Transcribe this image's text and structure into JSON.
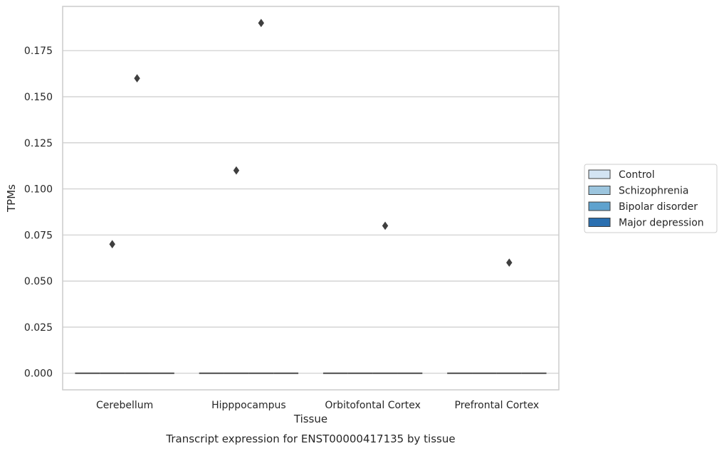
{
  "chart_data": {
    "type": "box",
    "caption": "Transcript expression for ENST00000417135 by tissue",
    "xlabel": "Tissue",
    "ylabel": "TPMs",
    "ylim": [
      -0.009,
      0.199
    ],
    "yticks": [
      0.0,
      0.025,
      0.05,
      0.075,
      0.1,
      0.125,
      0.15,
      0.175
    ],
    "ytick_labels": [
      "0.000",
      "0.025",
      "0.050",
      "0.075",
      "0.100",
      "0.125",
      "0.150",
      "0.175"
    ],
    "grid": "horizontal",
    "legend_position": "right",
    "categories": [
      "Cerebellum",
      "Hipppocampus",
      "Orbitofontal Cortex",
      "Prefrontal Cortex"
    ],
    "series": [
      {
        "name": "Control",
        "color": "#d3e4f3",
        "median": [
          0,
          0,
          0,
          0
        ],
        "q1": [
          0,
          0,
          0,
          0
        ],
        "q3": [
          0,
          0,
          0,
          0
        ],
        "outliers": [
          [],
          [],
          [],
          []
        ]
      },
      {
        "name": "Schizophrenia",
        "color": "#9cc5de",
        "median": [
          0,
          0,
          0,
          0
        ],
        "q1": [
          0,
          0,
          0,
          0
        ],
        "q3": [
          0,
          0,
          0,
          0
        ],
        "outliers": [
          [
            0.07
          ],
          [
            0.11
          ],
          [],
          []
        ]
      },
      {
        "name": "Bipolar disorder",
        "color": "#5fa2ce",
        "median": [
          0,
          0,
          0,
          0
        ],
        "q1": [
          0,
          0,
          0,
          0
        ],
        "q3": [
          0,
          0,
          0,
          0
        ],
        "outliers": [
          [
            0.16
          ],
          [
            0.19
          ],
          [
            0.08
          ],
          [
            0.06
          ]
        ]
      },
      {
        "name": "Major depression",
        "color": "#2a6fb0",
        "median": [
          0,
          0,
          0,
          0
        ],
        "q1": [
          0,
          0,
          0,
          0
        ],
        "q3": [
          0,
          0,
          0,
          0
        ],
        "outliers": [
          [],
          [],
          [],
          []
        ]
      }
    ]
  }
}
